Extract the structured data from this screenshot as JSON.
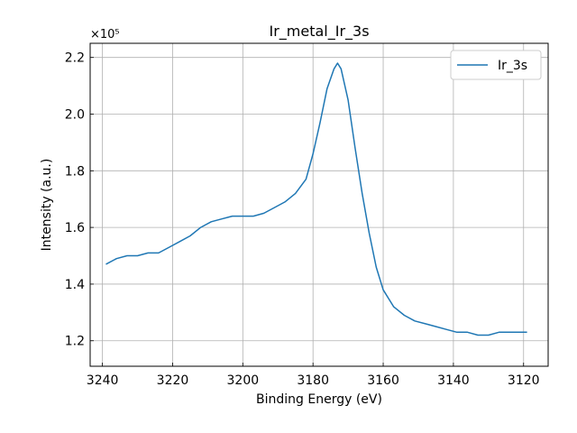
{
  "chart_data": {
    "type": "line",
    "title": "Ir_metal_Ir_3s",
    "xlabel": "Binding Energy (eV)",
    "ylabel": "Intensity (a.u.)",
    "y_multiplier_label": "×10⁵",
    "x_reversed": true,
    "xlim": [
      3243.5,
      3113.0
    ],
    "ylim": [
      1.11,
      2.25
    ],
    "x_ticks": [
      3240,
      3220,
      3200,
      3180,
      3160,
      3140,
      3120
    ],
    "y_ticks": [
      1.2,
      1.4,
      1.6,
      1.8,
      2.0,
      2.2
    ],
    "grid": true,
    "legend_position": "top-right",
    "series": [
      {
        "name": "Ir_3s",
        "color": "#1f77b4",
        "x": [
          3239,
          3236,
          3233,
          3230,
          3227,
          3224,
          3221,
          3218,
          3215,
          3212,
          3209,
          3206,
          3203,
          3200,
          3197,
          3194,
          3191,
          3188,
          3185,
          3182,
          3180,
          3178,
          3176,
          3174,
          3173,
          3172,
          3170,
          3168,
          3166,
          3164,
          3162,
          3160,
          3157,
          3154,
          3151,
          3148,
          3145,
          3142,
          3139,
          3136,
          3133,
          3130,
          3127,
          3124,
          3121,
          3119
        ],
        "y": [
          1.47,
          1.49,
          1.5,
          1.5,
          1.51,
          1.51,
          1.53,
          1.55,
          1.57,
          1.6,
          1.62,
          1.63,
          1.64,
          1.64,
          1.64,
          1.65,
          1.67,
          1.69,
          1.72,
          1.77,
          1.86,
          1.97,
          2.09,
          2.16,
          2.18,
          2.16,
          2.05,
          1.88,
          1.72,
          1.58,
          1.46,
          1.38,
          1.32,
          1.29,
          1.27,
          1.26,
          1.25,
          1.24,
          1.23,
          1.23,
          1.22,
          1.22,
          1.23,
          1.23,
          1.23,
          1.23
        ]
      }
    ]
  }
}
